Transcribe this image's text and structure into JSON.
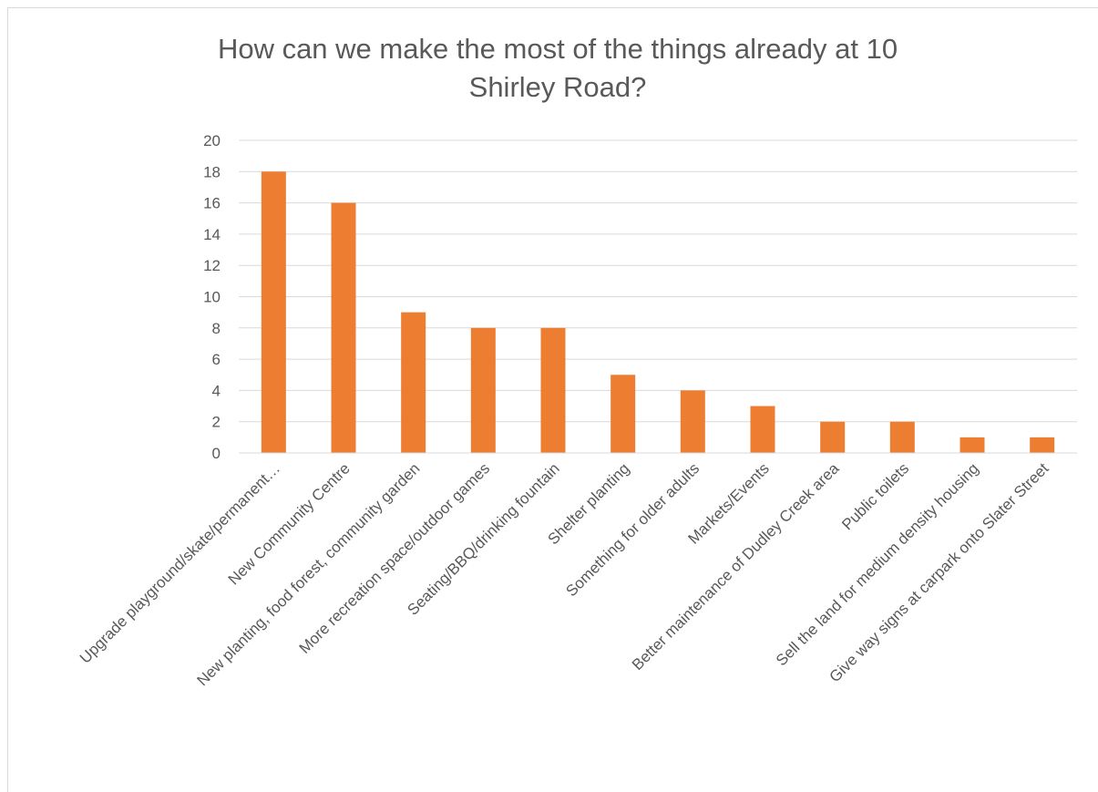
{
  "chart_data": {
    "type": "bar",
    "title_lines": [
      "How can we make the most of the things already at 10",
      "Shirley Road?"
    ],
    "categories": [
      "Upgrade playground/skate/permanent…",
      "New Community Centre",
      "New planting, food forest, community garden",
      "More recreation space/outdoor games",
      "Seating/BBQ/drinking fountain",
      "Shelter planting",
      "Something for older adults",
      "Markets/Events",
      "Better maintenance of Dudley Creek area",
      "Public toilets",
      "Sell the land for medium density housing",
      "Give way signs at carpark onto Slater Street"
    ],
    "values": [
      18,
      16,
      9,
      8,
      8,
      5,
      4,
      3,
      2,
      2,
      1,
      1
    ],
    "ylim": [
      0,
      20
    ],
    "yticks": [
      0,
      2,
      4,
      6,
      8,
      10,
      12,
      14,
      16,
      18,
      20
    ],
    "grid": true,
    "legend": "none",
    "bar_color": "#ED7D31"
  }
}
